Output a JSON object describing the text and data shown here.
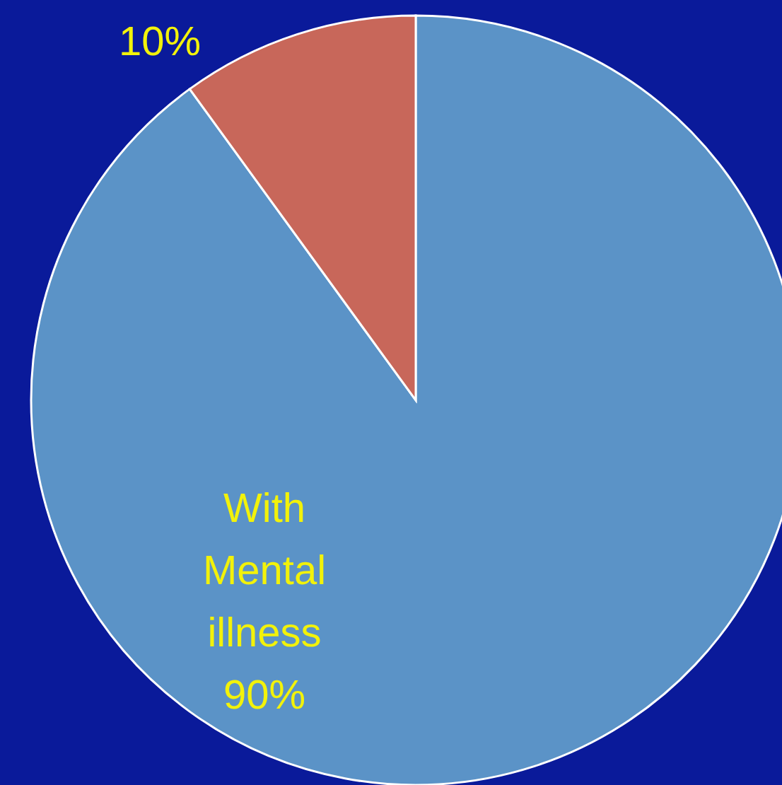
{
  "chart_data": {
    "type": "pie",
    "categories": [
      "With Mental illness",
      null
    ],
    "values": [
      90,
      10
    ],
    "colors": [
      "#5b93c7",
      "#c8675a"
    ],
    "value_labels": [
      "90%",
      "10%"
    ]
  }
}
